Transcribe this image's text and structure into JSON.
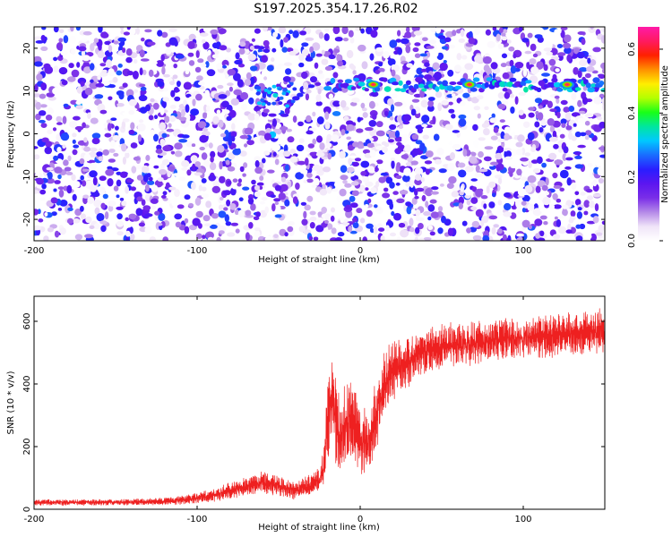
{
  "figure": {
    "title": "S197.2025.354.17.26.R02"
  },
  "chart_data": [
    {
      "type": "heatmap",
      "title": "S197.2025.354.17.26.R02",
      "xlabel": "Height of straight line (km)",
      "ylabel": "Frequency (Hz)",
      "xlim": [
        -200,
        150
      ],
      "ylim": [
        -25,
        25
      ],
      "x_ticks": [
        -200,
        -100,
        0,
        100
      ],
      "x_tick_labels": [
        "-200",
        "-100",
        "0",
        "100"
      ],
      "y_ticks": [
        -20,
        -10,
        0,
        10,
        20
      ],
      "y_tick_labels": [
        "-20",
        "-10",
        "0",
        "10",
        "20"
      ],
      "background": "noisy purple/violet speckle across the full frequency range",
      "features": {
        "signal_band_frequency_hz": 11.5,
        "signal_band_start_x": -20,
        "early_signal": {
          "x": -52,
          "frequency_hz": 9
        },
        "hot_spots": [
          {
            "x": 8,
            "frequency_hz": 11.5
          },
          {
            "x": 67,
            "frequency_hz": 11.5
          },
          {
            "x": 127,
            "frequency_hz": 11.5
          }
        ]
      },
      "colorbar": {
        "label": "Normalized spectral amplitude",
        "range": [
          0.0,
          0.67
        ],
        "ticks": [
          0.0,
          0.2,
          0.4,
          0.6
        ],
        "tick_labels": [
          "0.0",
          "0.2",
          "0.4",
          "0.6"
        ],
        "colormap": [
          "#ffffff",
          "#f0e4f8",
          "#b58ae8",
          "#7a2ee8",
          "#5b16f0",
          "#2a1eff",
          "#1a6cff",
          "#00c8ff",
          "#00e6a0",
          "#18ff18",
          "#b4ff00",
          "#ffee00",
          "#ff9000",
          "#ff2000",
          "#ff1a60",
          "#ff1aa8"
        ]
      },
      "grid": false,
      "legend": "none"
    },
    {
      "type": "line",
      "xlabel": "Height of straight line (km)",
      "ylabel": "SNR (10 * v/v)",
      "xlim": [
        -200,
        150
      ],
      "ylim": [
        0,
        680
      ],
      "x_ticks": [
        -200,
        -100,
        0,
        100
      ],
      "x_tick_labels": [
        "-200",
        "-100",
        "0",
        "100"
      ],
      "y_ticks": [
        0,
        200,
        400,
        600
      ],
      "y_tick_labels": [
        "0",
        "200",
        "400",
        "600"
      ],
      "series": [
        {
          "color": "#ee2020",
          "x": [
            -200,
            -180,
            -160,
            -140,
            -120,
            -110,
            -100,
            -90,
            -80,
            -70,
            -60,
            -50,
            -40,
            -35,
            -30,
            -25,
            -22,
            -20,
            -18,
            -15,
            -12,
            -10,
            -8,
            -5,
            -2,
            0,
            5,
            10,
            15,
            20,
            25,
            30,
            35,
            40,
            50,
            60,
            70,
            80,
            90,
            100,
            110,
            120,
            130,
            140,
            150
          ],
          "values": [
            22,
            22,
            22,
            23,
            25,
            28,
            35,
            45,
            60,
            75,
            85,
            75,
            60,
            70,
            80,
            95,
            140,
            300,
            350,
            280,
            220,
            260,
            280,
            290,
            240,
            210,
            220,
            300,
            400,
            440,
            460,
            470,
            490,
            510,
            520,
            525,
            530,
            540,
            545,
            545,
            550,
            555,
            560,
            565,
            570
          ],
          "spread": [
            10,
            10,
            10,
            10,
            12,
            14,
            18,
            22,
            28,
            32,
            35,
            32,
            28,
            30,
            35,
            40,
            70,
            160,
            170,
            150,
            120,
            140,
            150,
            150,
            130,
            110,
            110,
            130,
            120,
            100,
            90,
            80,
            75,
            75,
            75,
            70,
            70,
            70,
            70,
            70,
            70,
            70,
            70,
            70,
            70
          ]
        }
      ],
      "grid": false,
      "legend": "none"
    }
  ]
}
